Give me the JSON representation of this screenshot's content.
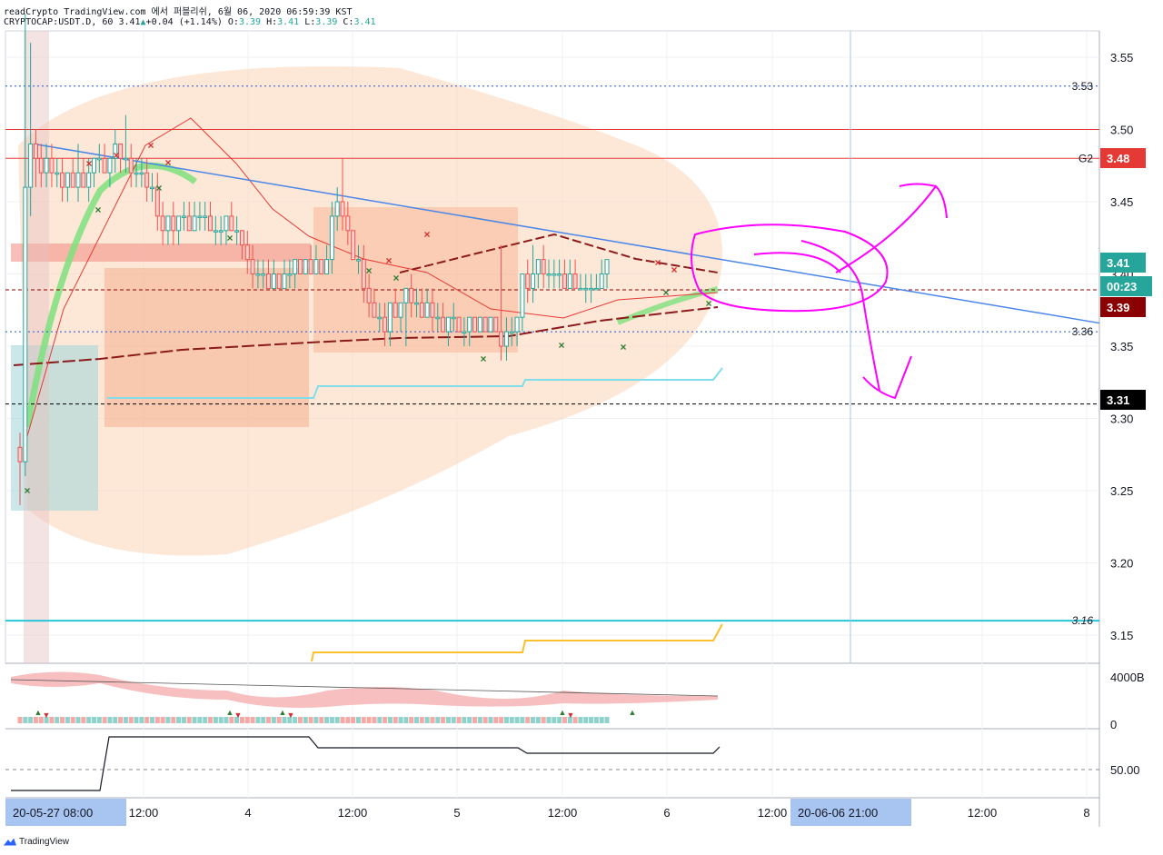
{
  "header": {
    "line1": "readCrypto TradingView.com 에서 퍼블리쉬, 6월 06, 2020 06:59:39 KST",
    "symbol": "CRYPTOCAP:USDT.D, 60",
    "last": "3.41",
    "change_arrow": "▲",
    "change": "+0.04 (+1.14%)",
    "ohlc": {
      "o_label": "O:",
      "o": "3.39",
      "h_label": "H:",
      "h": "3.41",
      "l_label": "L:",
      "l": "3.39",
      "c_label": "C:",
      "c": "3.41"
    }
  },
  "brand": {
    "name": "TradingView",
    "logo_icon": "tradingview-logo-icon"
  },
  "colors": {
    "up": "#26a69a",
    "down": "#ef5350",
    "trend": "#4a86e8",
    "cyan": "#26c6da",
    "magenta": "#ff00ff",
    "red_line": "#e53935",
    "yellow": "#fbc02d"
  },
  "chart_data": {
    "type": "candlestick",
    "title": "",
    "y_range": [
      3.12,
      3.57
    ],
    "y_ticks": [
      "3.55",
      "3.50",
      "3.45",
      "3.40",
      "3.35",
      "3.30",
      "3.25",
      "3.20",
      "3.15"
    ],
    "x_ticks": [
      "12:00",
      "4",
      "12:00",
      "5",
      "12:00",
      "6",
      "12:00",
      "12:00",
      "8"
    ],
    "x_cursor_labels": [
      "20-05-27  08:00",
      "20-06-06  21:00"
    ],
    "price_badges": [
      {
        "label": "3.48",
        "value": 3.48,
        "color": "#e53935"
      },
      {
        "label": "3.41",
        "value": 3.41,
        "color": "#26a69a"
      },
      {
        "label": "00:23",
        "value": 3.39,
        "color": "#26a69a"
      },
      {
        "label": "3.39",
        "value": 3.39,
        "color": "#8b0000"
      },
      {
        "label": "3.31",
        "value": 3.31,
        "color": "#000000"
      }
    ],
    "level_labels": [
      {
        "label": "3.53",
        "value": 3.53
      },
      {
        "label": "G2",
        "value": 3.48
      },
      {
        "label": "3.36",
        "value": 3.36
      },
      {
        "label": "3.16",
        "value": 3.16
      }
    ],
    "horizontal_levels": [
      {
        "value": 3.53,
        "style": "dotted",
        "color": "#1e56d6"
      },
      {
        "value": 3.5,
        "style": "solid",
        "color": "#e53935"
      },
      {
        "value": 3.48,
        "style": "solid",
        "color": "#e53935"
      },
      {
        "value": 3.389,
        "style": "dashed",
        "color": "#8b0000"
      },
      {
        "value": 3.36,
        "style": "dotted",
        "color": "#1e56d6"
      },
      {
        "value": 3.31,
        "style": "dashed",
        "color": "#000000"
      },
      {
        "value": 3.16,
        "style": "solid",
        "color": "#26c6da"
      }
    ],
    "trendline": {
      "from": {
        "bar": 0,
        "value": 3.49
      },
      "to": {
        "bar": 120,
        "value": 3.366
      }
    },
    "candles": [
      {
        "o": 3.28,
        "h": 3.29,
        "l": 3.24,
        "c": 3.27
      },
      {
        "o": 3.27,
        "h": 3.58,
        "l": 3.26,
        "c": 3.46
      },
      {
        "o": 3.46,
        "h": 3.56,
        "l": 3.44,
        "c": 3.49
      },
      {
        "o": 3.49,
        "h": 3.5,
        "l": 3.46,
        "c": 3.48
      },
      {
        "o": 3.48,
        "h": 3.49,
        "l": 3.46,
        "c": 3.47
      },
      {
        "o": 3.47,
        "h": 3.49,
        "l": 3.46,
        "c": 3.48
      },
      {
        "o": 3.48,
        "h": 3.49,
        "l": 3.46,
        "c": 3.47
      },
      {
        "o": 3.47,
        "h": 3.48,
        "l": 3.46,
        "c": 3.47
      },
      {
        "o": 3.47,
        "h": 3.48,
        "l": 3.45,
        "c": 3.46
      },
      {
        "o": 3.46,
        "h": 3.47,
        "l": 3.45,
        "c": 3.47
      },
      {
        "o": 3.47,
        "h": 3.48,
        "l": 3.46,
        "c": 3.46
      },
      {
        "o": 3.46,
        "h": 3.49,
        "l": 3.45,
        "c": 3.47
      },
      {
        "o": 3.47,
        "h": 3.48,
        "l": 3.46,
        "c": 3.46
      },
      {
        "o": 3.46,
        "h": 3.48,
        "l": 3.45,
        "c": 3.47
      },
      {
        "o": 3.47,
        "h": 3.48,
        "l": 3.46,
        "c": 3.48
      },
      {
        "o": 3.48,
        "h": 3.49,
        "l": 3.47,
        "c": 3.48
      },
      {
        "o": 3.48,
        "h": 3.49,
        "l": 3.47,
        "c": 3.47
      },
      {
        "o": 3.47,
        "h": 3.48,
        "l": 3.46,
        "c": 3.48
      },
      {
        "o": 3.48,
        "h": 3.5,
        "l": 3.47,
        "c": 3.49
      },
      {
        "o": 3.49,
        "h": 3.49,
        "l": 3.47,
        "c": 3.48
      },
      {
        "o": 3.48,
        "h": 3.51,
        "l": 3.47,
        "c": 3.48
      },
      {
        "o": 3.48,
        "h": 3.49,
        "l": 3.46,
        "c": 3.47
      },
      {
        "o": 3.47,
        "h": 3.48,
        "l": 3.46,
        "c": 3.47
      },
      {
        "o": 3.47,
        "h": 3.48,
        "l": 3.46,
        "c": 3.47
      },
      {
        "o": 3.47,
        "h": 3.48,
        "l": 3.45,
        "c": 3.46
      },
      {
        "o": 3.46,
        "h": 3.47,
        "l": 3.45,
        "c": 3.46
      },
      {
        "o": 3.46,
        "h": 3.47,
        "l": 3.43,
        "c": 3.44
      },
      {
        "o": 3.44,
        "h": 3.45,
        "l": 3.42,
        "c": 3.43
      },
      {
        "o": 3.43,
        "h": 3.44,
        "l": 3.42,
        "c": 3.44
      },
      {
        "o": 3.44,
        "h": 3.45,
        "l": 3.42,
        "c": 3.43
      },
      {
        "o": 3.43,
        "h": 3.44,
        "l": 3.42,
        "c": 3.44
      },
      {
        "o": 3.44,
        "h": 3.45,
        "l": 3.43,
        "c": 3.44
      },
      {
        "o": 3.44,
        "h": 3.45,
        "l": 3.43,
        "c": 3.43
      },
      {
        "o": 3.43,
        "h": 3.45,
        "l": 3.43,
        "c": 3.44
      },
      {
        "o": 3.44,
        "h": 3.45,
        "l": 3.43,
        "c": 3.44
      },
      {
        "o": 3.44,
        "h": 3.45,
        "l": 3.43,
        "c": 3.44
      },
      {
        "o": 3.44,
        "h": 3.45,
        "l": 3.43,
        "c": 3.43
      },
      {
        "o": 3.43,
        "h": 3.44,
        "l": 3.42,
        "c": 3.43
      },
      {
        "o": 3.43,
        "h": 3.44,
        "l": 3.42,
        "c": 3.43
      },
      {
        "o": 3.43,
        "h": 3.44,
        "l": 3.42,
        "c": 3.44
      },
      {
        "o": 3.44,
        "h": 3.45,
        "l": 3.43,
        "c": 3.43
      },
      {
        "o": 3.43,
        "h": 3.44,
        "l": 3.42,
        "c": 3.43
      },
      {
        "o": 3.43,
        "h": 3.43,
        "l": 3.41,
        "c": 3.42
      },
      {
        "o": 3.42,
        "h": 3.43,
        "l": 3.4,
        "c": 3.41
      },
      {
        "o": 3.41,
        "h": 3.42,
        "l": 3.39,
        "c": 3.4
      },
      {
        "o": 3.4,
        "h": 3.41,
        "l": 3.39,
        "c": 3.4
      },
      {
        "o": 3.4,
        "h": 3.41,
        "l": 3.39,
        "c": 3.4
      },
      {
        "o": 3.4,
        "h": 3.41,
        "l": 3.39,
        "c": 3.39
      },
      {
        "o": 3.39,
        "h": 3.41,
        "l": 3.39,
        "c": 3.4
      },
      {
        "o": 3.4,
        "h": 3.4,
        "l": 3.39,
        "c": 3.39
      },
      {
        "o": 3.39,
        "h": 3.41,
        "l": 3.39,
        "c": 3.4
      },
      {
        "o": 3.4,
        "h": 3.41,
        "l": 3.39,
        "c": 3.4
      },
      {
        "o": 3.4,
        "h": 3.41,
        "l": 3.39,
        "c": 3.41
      },
      {
        "o": 3.41,
        "h": 3.41,
        "l": 3.4,
        "c": 3.4
      },
      {
        "o": 3.4,
        "h": 3.41,
        "l": 3.4,
        "c": 3.41
      },
      {
        "o": 3.41,
        "h": 3.42,
        "l": 3.4,
        "c": 3.4
      },
      {
        "o": 3.4,
        "h": 3.42,
        "l": 3.4,
        "c": 3.41
      },
      {
        "o": 3.41,
        "h": 3.41,
        "l": 3.4,
        "c": 3.4
      },
      {
        "o": 3.4,
        "h": 3.42,
        "l": 3.4,
        "c": 3.41
      },
      {
        "o": 3.41,
        "h": 3.45,
        "l": 3.4,
        "c": 3.44
      },
      {
        "o": 3.44,
        "h": 3.46,
        "l": 3.43,
        "c": 3.45
      },
      {
        "o": 3.45,
        "h": 3.48,
        "l": 3.43,
        "c": 3.44
      },
      {
        "o": 3.44,
        "h": 3.45,
        "l": 3.42,
        "c": 3.43
      },
      {
        "o": 3.43,
        "h": 3.43,
        "l": 3.41,
        "c": 3.41
      },
      {
        "o": 3.41,
        "h": 3.42,
        "l": 3.4,
        "c": 3.41
      },
      {
        "o": 3.41,
        "h": 3.42,
        "l": 3.38,
        "c": 3.39
      },
      {
        "o": 3.39,
        "h": 3.4,
        "l": 3.37,
        "c": 3.38
      },
      {
        "o": 3.38,
        "h": 3.39,
        "l": 3.37,
        "c": 3.37
      },
      {
        "o": 3.37,
        "h": 3.38,
        "l": 3.36,
        "c": 3.37
      },
      {
        "o": 3.37,
        "h": 3.38,
        "l": 3.35,
        "c": 3.36
      },
      {
        "o": 3.36,
        "h": 3.38,
        "l": 3.35,
        "c": 3.38
      },
      {
        "o": 3.38,
        "h": 3.39,
        "l": 3.37,
        "c": 3.37
      },
      {
        "o": 3.37,
        "h": 3.38,
        "l": 3.36,
        "c": 3.38
      },
      {
        "o": 3.38,
        "h": 3.39,
        "l": 3.35,
        "c": 3.39
      },
      {
        "o": 3.39,
        "h": 3.4,
        "l": 3.37,
        "c": 3.38
      },
      {
        "o": 3.38,
        "h": 3.39,
        "l": 3.37,
        "c": 3.38
      },
      {
        "o": 3.38,
        "h": 3.39,
        "l": 3.37,
        "c": 3.37
      },
      {
        "o": 3.37,
        "h": 3.39,
        "l": 3.37,
        "c": 3.38
      },
      {
        "o": 3.38,
        "h": 3.39,
        "l": 3.36,
        "c": 3.37
      },
      {
        "o": 3.37,
        "h": 3.38,
        "l": 3.36,
        "c": 3.37
      },
      {
        "o": 3.37,
        "h": 3.38,
        "l": 3.36,
        "c": 3.36
      },
      {
        "o": 3.36,
        "h": 3.37,
        "l": 3.35,
        "c": 3.37
      },
      {
        "o": 3.37,
        "h": 3.38,
        "l": 3.36,
        "c": 3.37
      },
      {
        "o": 3.37,
        "h": 3.37,
        "l": 3.36,
        "c": 3.36
      },
      {
        "o": 3.36,
        "h": 3.37,
        "l": 3.35,
        "c": 3.36
      },
      {
        "o": 3.36,
        "h": 3.37,
        "l": 3.35,
        "c": 3.37
      },
      {
        "o": 3.37,
        "h": 3.37,
        "l": 3.36,
        "c": 3.36
      },
      {
        "o": 3.36,
        "h": 3.37,
        "l": 3.36,
        "c": 3.37
      },
      {
        "o": 3.37,
        "h": 3.37,
        "l": 3.36,
        "c": 3.36
      },
      {
        "o": 3.36,
        "h": 3.37,
        "l": 3.36,
        "c": 3.37
      },
      {
        "o": 3.37,
        "h": 3.37,
        "l": 3.36,
        "c": 3.36
      },
      {
        "o": 3.36,
        "h": 3.42,
        "l": 3.34,
        "c": 3.35
      },
      {
        "o": 3.35,
        "h": 3.37,
        "l": 3.34,
        "c": 3.36
      },
      {
        "o": 3.36,
        "h": 3.37,
        "l": 3.35,
        "c": 3.36
      },
      {
        "o": 3.36,
        "h": 3.37,
        "l": 3.35,
        "c": 3.37
      },
      {
        "o": 3.37,
        "h": 3.4,
        "l": 3.36,
        "c": 3.4
      },
      {
        "o": 3.4,
        "h": 3.41,
        "l": 3.38,
        "c": 3.39
      },
      {
        "o": 3.39,
        "h": 3.42,
        "l": 3.38,
        "c": 3.4
      },
      {
        "o": 3.4,
        "h": 3.41,
        "l": 3.39,
        "c": 3.41
      },
      {
        "o": 3.41,
        "h": 3.42,
        "l": 3.39,
        "c": 3.4
      },
      {
        "o": 3.4,
        "h": 3.41,
        "l": 3.39,
        "c": 3.4
      },
      {
        "o": 3.4,
        "h": 3.41,
        "l": 3.39,
        "c": 3.4
      },
      {
        "o": 3.4,
        "h": 3.41,
        "l": 3.39,
        "c": 3.4
      },
      {
        "o": 3.4,
        "h": 3.41,
        "l": 3.39,
        "c": 3.39
      },
      {
        "o": 3.39,
        "h": 3.41,
        "l": 3.39,
        "c": 3.4
      },
      {
        "o": 3.4,
        "h": 3.41,
        "l": 3.39,
        "c": 3.39
      },
      {
        "o": 3.39,
        "h": 3.4,
        "l": 3.39,
        "c": 3.39
      },
      {
        "o": 3.39,
        "h": 3.4,
        "l": 3.38,
        "c": 3.39
      },
      {
        "o": 3.39,
        "h": 3.4,
        "l": 3.38,
        "c": 3.39
      },
      {
        "o": 3.39,
        "h": 3.4,
        "l": 3.39,
        "c": 3.39
      },
      {
        "o": 3.39,
        "h": 3.41,
        "l": 3.39,
        "c": 3.4
      },
      {
        "o": 3.4,
        "h": 3.41,
        "l": 3.39,
        "c": 3.41
      }
    ],
    "volume_panel": {
      "axis_labels": [
        "4000B",
        "0"
      ]
    },
    "oscillator_panel": {
      "axis_labels": [
        "50.00"
      ]
    }
  }
}
